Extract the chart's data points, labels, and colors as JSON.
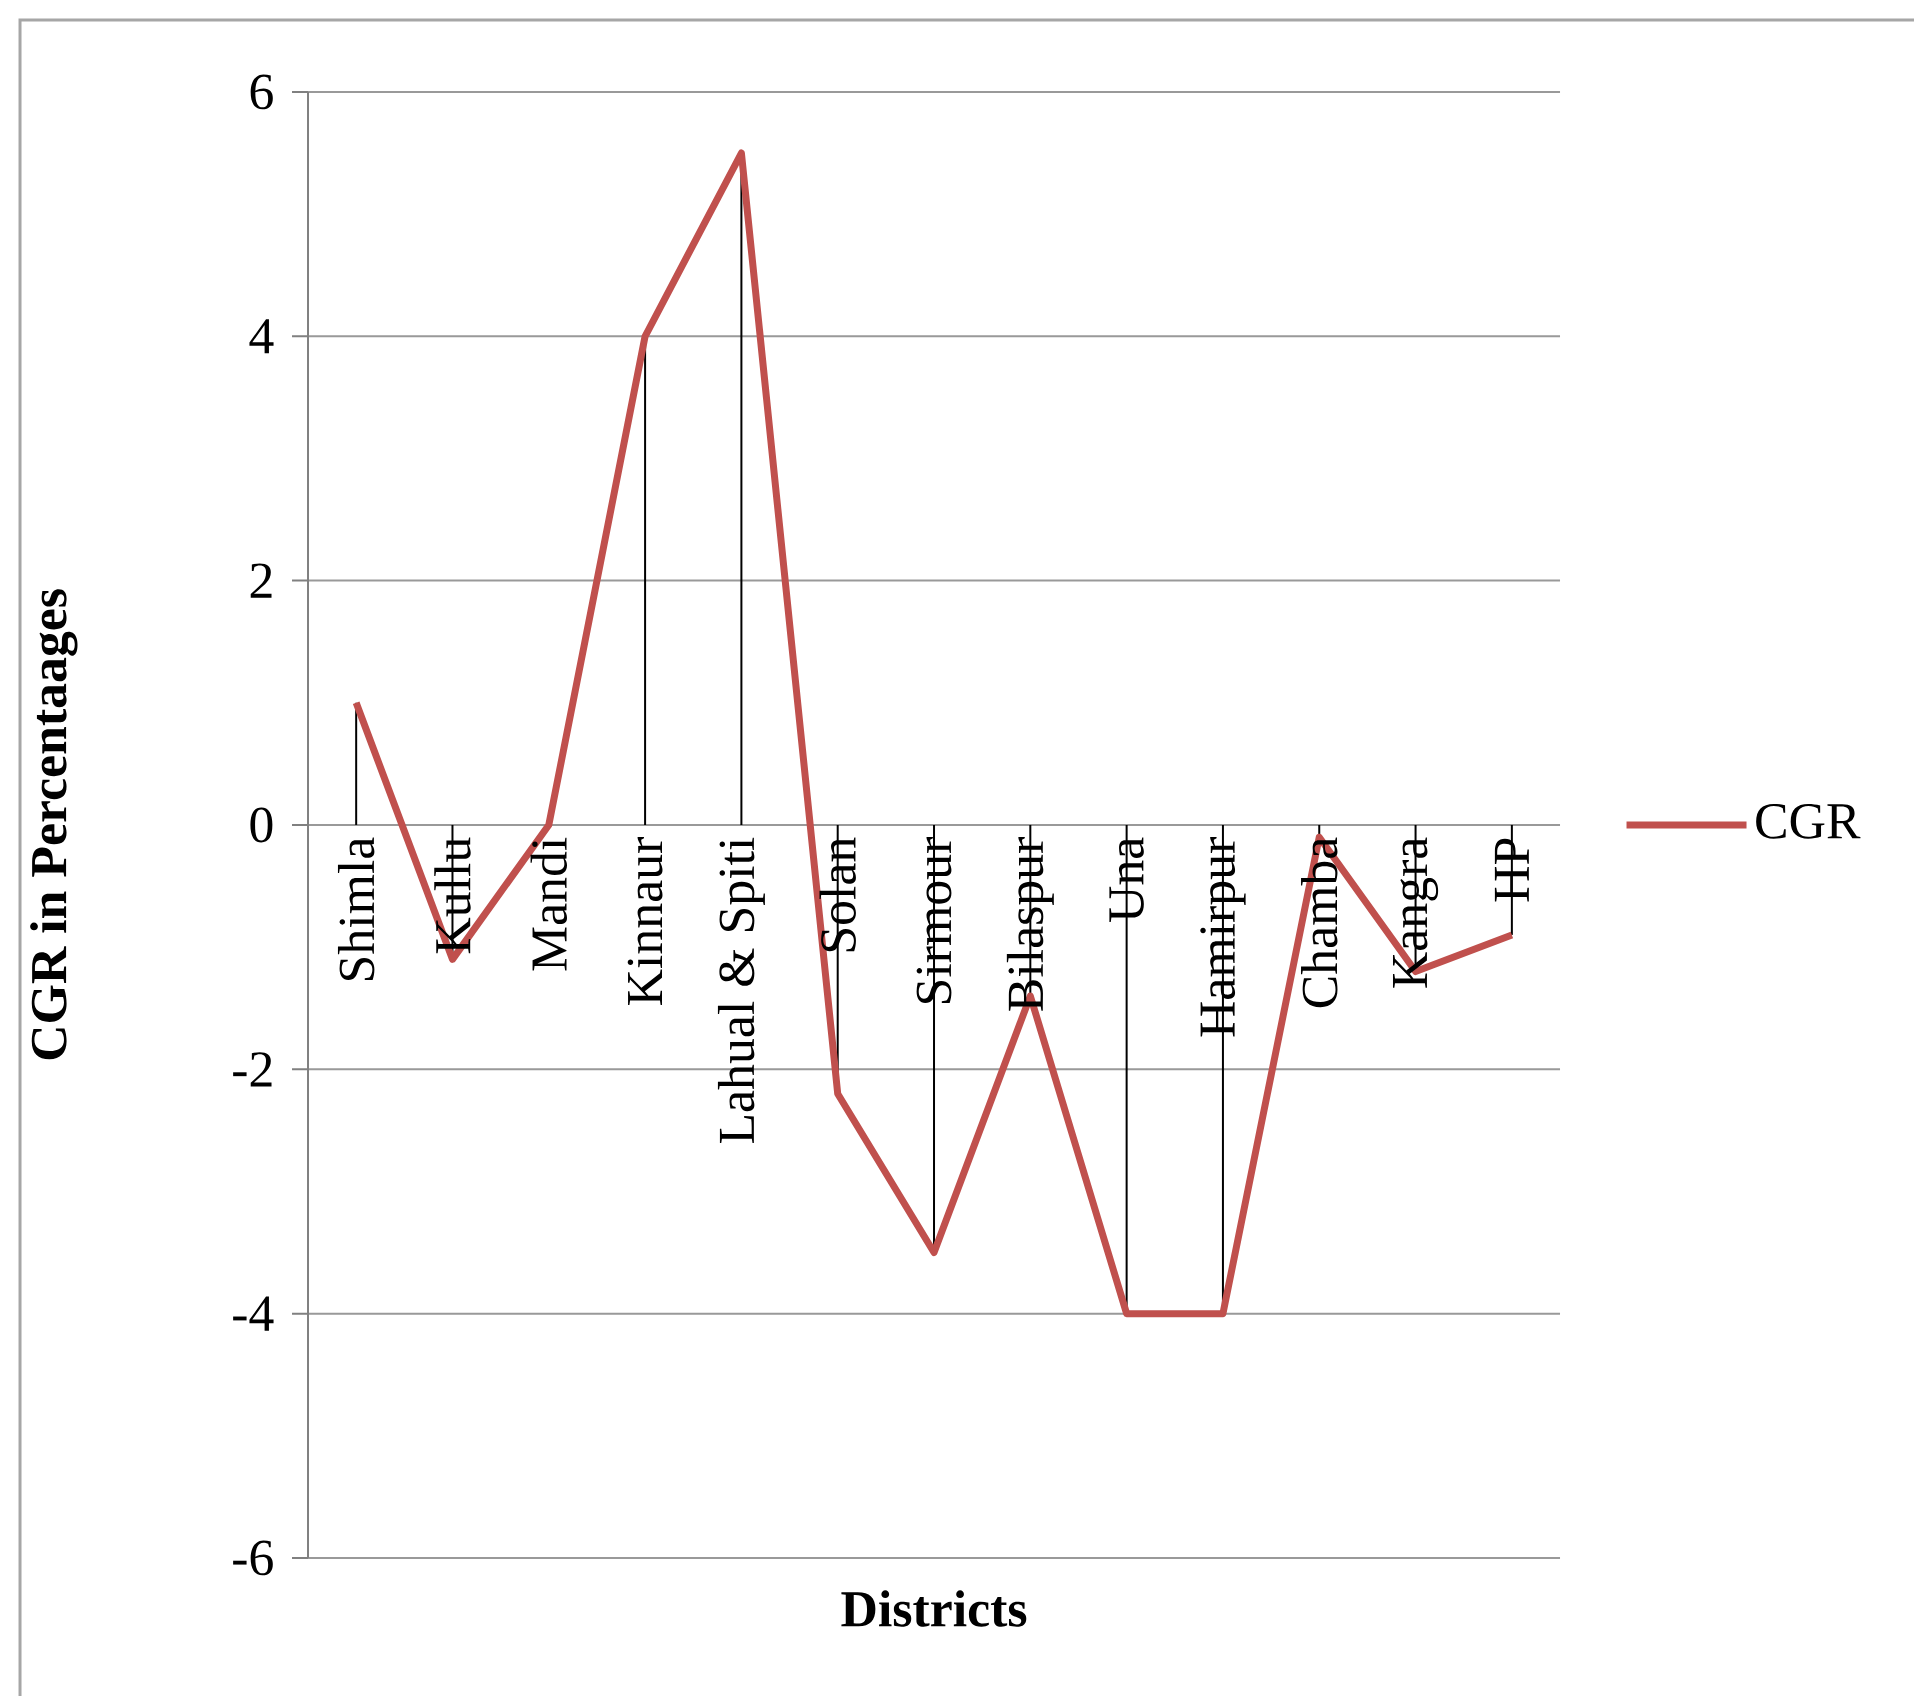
{
  "chart_data": {
    "type": "line",
    "xlabel": "Districts",
    "ylabel": "CGR in Percentaages",
    "categories": [
      "Shimla",
      "Kullu",
      "Mandi",
      "Kinnaur",
      "Lahual  & Spiti",
      "Solan",
      "Sirmour",
      "Bilaspur",
      "Una",
      "Hamirpur",
      "Chamba",
      "Kangra",
      "HP"
    ],
    "series": [
      {
        "name": "CGR",
        "color": "#c0504d",
        "values": [
          1.0,
          -1.1,
          0.0,
          4.0,
          5.5,
          -2.2,
          -3.5,
          -1.4,
          -4.0,
          -4.0,
          -0.1,
          -1.2,
          -0.9
        ],
        "errors": [
          [
            0,
            1.0
          ],
          [
            -1.1,
            0
          ],
          [
            0,
            0
          ],
          [
            0,
            4.0
          ],
          [
            0,
            5.5
          ],
          [
            -2.2,
            0
          ],
          [
            -3.5,
            0
          ],
          [
            -1.4,
            0
          ],
          [
            -4.0,
            0
          ],
          [
            -4.0,
            0
          ],
          [
            -0.1,
            0
          ],
          [
            -1.2,
            0
          ],
          [
            -0.9,
            0
          ]
        ]
      }
    ],
    "ylim": [
      -6,
      6
    ],
    "yticks": [
      -6,
      -4,
      -2,
      0,
      2,
      4,
      6
    ],
    "grid": "y",
    "legend": "right",
    "marker": "none",
    "line_style": "solid"
  }
}
